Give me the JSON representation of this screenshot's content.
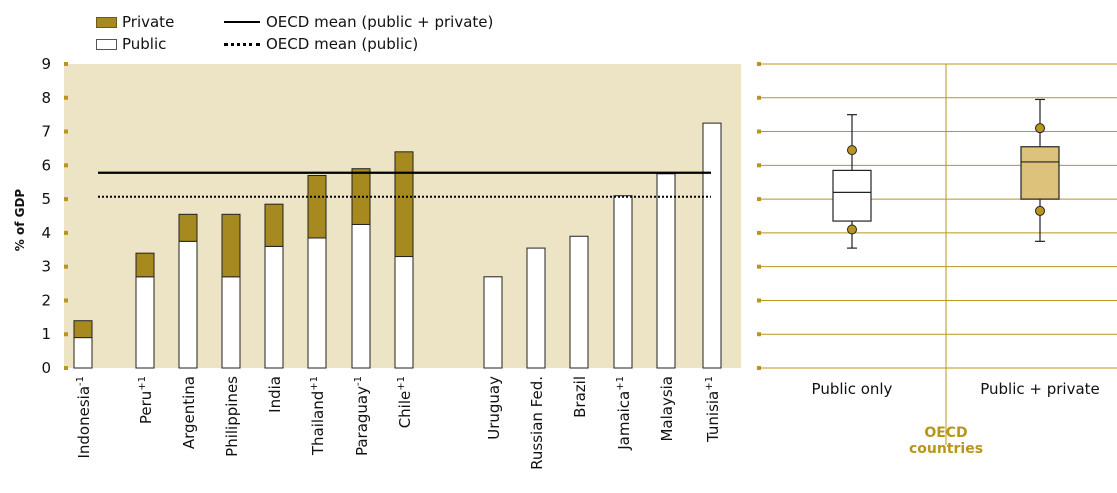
{
  "legend": {
    "private": "Private",
    "public": "Public",
    "mean_total": "OECD mean (public + private)",
    "mean_public": "OECD mean (public)"
  },
  "colors": {
    "private": "#a68a1f",
    "public": "#ffffff",
    "plot_bg": "#ece4c4",
    "gold": "#b8961e",
    "box_fill_right": "#dcc27a"
  },
  "chart_data": [
    {
      "type": "bar",
      "stacked": true,
      "ylabel": "% of GDP",
      "ylim": [
        0,
        9
      ],
      "yticks": [
        "0",
        "1",
        "2",
        "3",
        "4",
        "5",
        "6",
        "7",
        "8",
        "9"
      ],
      "categories": [
        {
          "name": "Indonesia",
          "sup": "-1"
        },
        {
          "name": "Peru",
          "sup": "+1"
        },
        {
          "name": "Argentina",
          "sup": ""
        },
        {
          "name": "Philippines",
          "sup": ""
        },
        {
          "name": "India",
          "sup": ""
        },
        {
          "name": "Thailand",
          "sup": "+1"
        },
        {
          "name": "Paraguay",
          "sup": "-1"
        },
        {
          "name": "Chile",
          "sup": "+1"
        },
        {
          "name": "Uruguay",
          "sup": ""
        },
        {
          "name": "Russian Fed.",
          "sup": ""
        },
        {
          "name": "Brazil",
          "sup": ""
        },
        {
          "name": "Jamaica",
          "sup": "+1"
        },
        {
          "name": "Malaysia",
          "sup": ""
        },
        {
          "name": "Tunisia",
          "sup": "+1"
        }
      ],
      "series": [
        {
          "name": "Public",
          "values": [
            0.9,
            2.7,
            3.75,
            2.7,
            3.6,
            3.85,
            4.25,
            3.3,
            2.7,
            3.55,
            3.9,
            5.1,
            5.75,
            7.25
          ]
        },
        {
          "name": "Private",
          "values": [
            0.5,
            0.7,
            0.8,
            1.85,
            1.25,
            1.85,
            1.65,
            3.1,
            0,
            0,
            0,
            0,
            0,
            0
          ]
        }
      ],
      "reference_lines": [
        {
          "name": "OECD mean (public + private)",
          "value": 5.78,
          "style": "solid"
        },
        {
          "name": "OECD mean (public)",
          "value": 5.07,
          "style": "dotted"
        }
      ],
      "grid": false
    },
    {
      "type": "box",
      "title": "OECD countries",
      "ylim": [
        0,
        9
      ],
      "grid": true,
      "categories": [
        "Public only",
        "Public + private"
      ],
      "boxes": [
        {
          "min": 3.55,
          "p10": 4.1,
          "q1": 4.35,
          "median": 5.2,
          "q3": 5.85,
          "p90": 6.45,
          "max": 7.5
        },
        {
          "min": 3.75,
          "p10": 4.65,
          "q1": 5.0,
          "median": 6.1,
          "q3": 6.55,
          "p90": 7.1,
          "max": 7.95
        }
      ]
    }
  ]
}
